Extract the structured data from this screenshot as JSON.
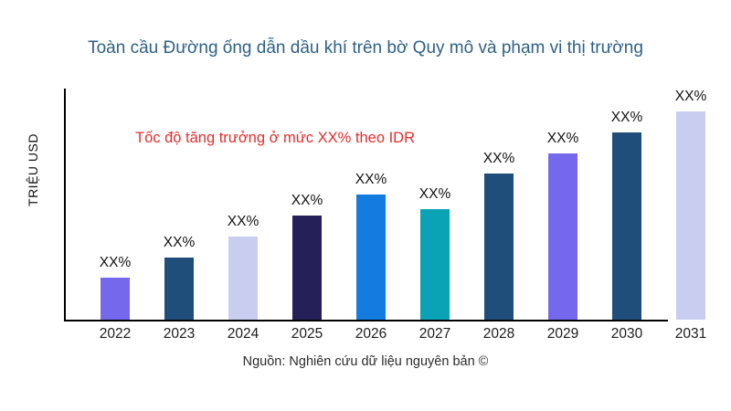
{
  "title": "Toàn cầu Đường ống dẫn dầu khí trên bờ Quy mô và phạm vi thị trường",
  "y_axis_label": "TRIỆU USD",
  "growth_note": "Tốc độ tăng trưởng ở mức XX% theo IDR",
  "source": "Nguồn: Nghiên cứu dữ liệu nguyên bản ©",
  "colors": {
    "title": "#2e6187",
    "growth_note": "#e82c2c",
    "axis": "#000000",
    "purple": "#7668ec",
    "dark_steel_blue": "#1f4e7a",
    "lavender": "#c9cdef",
    "dark_navy": "#252058",
    "bright_blue": "#147ce0",
    "teal": "#0aa2b5"
  },
  "chart_data": {
    "type": "bar",
    "title": "Toàn cầu Đường ống dẫn dầu khí trên bờ Quy mô và phạm vi thị trường",
    "xlabel": "",
    "ylabel": "TRIỆU USD",
    "categories": [
      "2022",
      "2023",
      "2024",
      "2025",
      "2026",
      "2027",
      "2028",
      "2029",
      "2030",
      "2031"
    ],
    "values_relative_percent_of_max": [
      20,
      30,
      40,
      50,
      60,
      53,
      70,
      80,
      90,
      100
    ],
    "bar_labels": [
      "XX%",
      "XX%",
      "XX%",
      "XX%",
      "XX%",
      "XX%",
      "XX%",
      "XX%",
      "XX%",
      "XX%"
    ],
    "bar_colors": [
      "#7668ec",
      "#1f4e7a",
      "#c9cdef",
      "#252058",
      "#147ce0",
      "#0aa2b5",
      "#1f4e7a",
      "#7668ec",
      "#1f4e7a",
      "#c9cdef"
    ],
    "annotation": "Tốc độ tăng trưởng ở mức XX% theo IDR",
    "legend": null,
    "grid": false,
    "y_tick_labels": [],
    "notes": "Values shown as XX% placeholders; bar heights increase roughly linearly except a dip at 2027; 2031 bar sits beyond the end of the x-axis line"
  }
}
